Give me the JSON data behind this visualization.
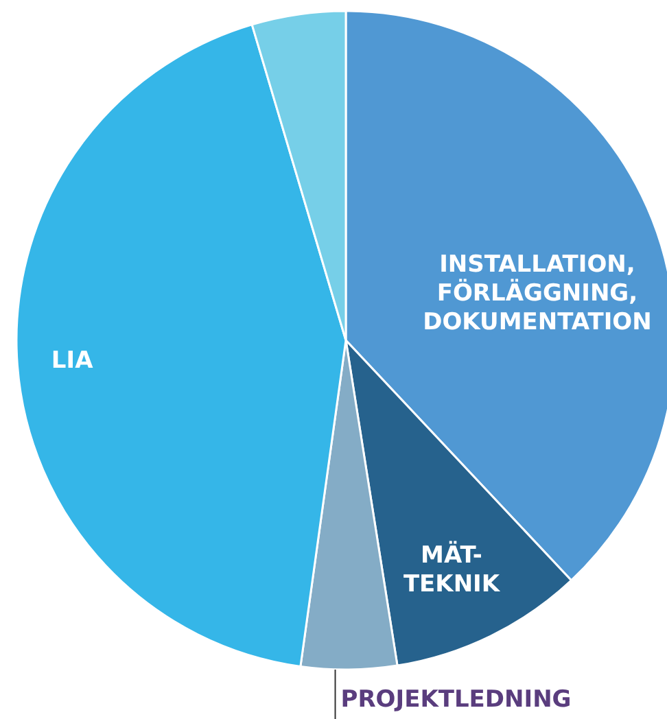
{
  "chart_data": {
    "type": "pie",
    "categories": [
      "INSTALLATION,\nFÖRLÄGGNING,\nDOKUMENTATION",
      "MÄT-\nTEKNIK",
      "PROJEKTLEDNING",
      "LIA",
      null
    ],
    "values": [
      38,
      9.5,
      4.7,
      43.2,
      4.6
    ],
    "colors": [
      "#5098d3",
      "#26628d",
      "#84acc6",
      "#35b6e8",
      "#76cfe8"
    ]
  }
}
